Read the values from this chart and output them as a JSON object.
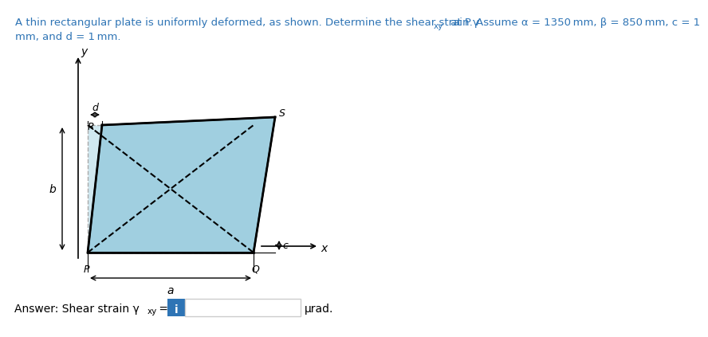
{
  "title_line1": "A thin rectangular plate is uniformly deformed, as shown. Determine the shear strain γ",
  "title_xy_sub": "xy",
  "title_line1_end": " at P. Assume α = 1350 mm, β = 850 mm, c = 1",
  "title_line2": "mm, and d = 1 mm.",
  "title_color": "#2e74b5",
  "title_fontsize": 9.5,
  "bg_color": "#ffffff",
  "plate_fill": "#a8d8e8",
  "plate_stroke": "#000000",
  "dashed_color": "#555555",
  "answer_label": "Answer: Shear strain γ",
  "answer_sub": "xy",
  "answer_end": " =",
  "button_color": "#2e74b5",
  "button_text": "i",
  "unit_label": "μrad.",
  "P_label": "P",
  "Q_label": "Q",
  "R_label": "R",
  "S_label": "S",
  "a_label": "a",
  "b_label": "b",
  "c_label": "c",
  "d_label": "d",
  "x_label": "x",
  "y_label": "y"
}
